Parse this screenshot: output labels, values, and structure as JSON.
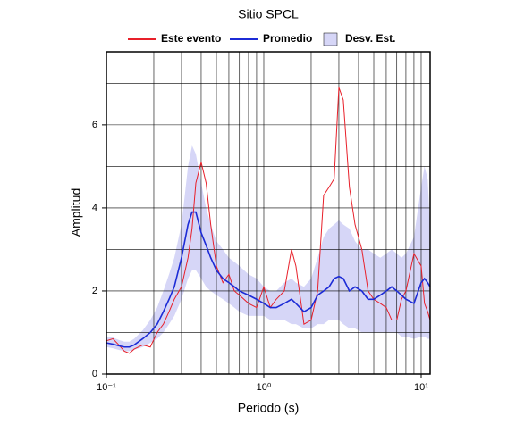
{
  "chart_data": {
    "type": "line",
    "title": "Sitio SPCL",
    "xlabel": "Periodo (s)",
    "ylabel": "Amplitud",
    "xscale": "log",
    "grid": true,
    "legend": "top",
    "xlim": [
      0.1,
      11.4
    ],
    "ylim": [
      0,
      7.76
    ],
    "xticks": [
      {
        "value": 0.1,
        "label": "10⁻¹"
      },
      {
        "value": 1,
        "label": "10⁰"
      },
      {
        "value": 10,
        "label": "10¹"
      }
    ],
    "xminor": [
      0.2,
      0.3,
      0.4,
      0.5,
      0.6,
      0.7,
      0.8,
      0.9,
      2,
      3,
      4,
      5,
      6,
      7,
      8,
      9
    ],
    "yticks": [
      0,
      2,
      4,
      6
    ],
    "yminor": [
      1,
      3,
      5,
      7
    ],
    "x": [
      0.1,
      0.11,
      0.12,
      0.13,
      0.14,
      0.15,
      0.17,
      0.19,
      0.21,
      0.23,
      0.25,
      0.27,
      0.3,
      0.33,
      0.35,
      0.37,
      0.4,
      0.43,
      0.46,
      0.5,
      0.55,
      0.6,
      0.65,
      0.7,
      0.8,
      0.9,
      1.0,
      1.1,
      1.2,
      1.35,
      1.5,
      1.6,
      1.8,
      2.0,
      2.2,
      2.4,
      2.6,
      2.8,
      3.0,
      3.2,
      3.5,
      3.8,
      4.2,
      4.6,
      5.0,
      5.5,
      6.0,
      6.5,
      7.0,
      7.5,
      8.0,
      9.0,
      10.0,
      10.5,
      11.0,
      11.4
    ],
    "band": {
      "name": "Desv. Est.",
      "color": "#d6d6f7",
      "lower": [
        0.65,
        0.62,
        0.58,
        0.55,
        0.55,
        0.58,
        0.65,
        0.75,
        0.85,
        1.0,
        1.2,
        1.4,
        1.8,
        2.3,
        2.5,
        2.5,
        2.3,
        2.1,
        2.0,
        1.9,
        1.8,
        1.7,
        1.6,
        1.5,
        1.4,
        1.4,
        1.4,
        1.3,
        1.3,
        1.3,
        1.2,
        1.2,
        1.1,
        1.1,
        1.2,
        1.2,
        1.3,
        1.3,
        1.3,
        1.2,
        1.1,
        1.1,
        1.0,
        1.0,
        1.0,
        1.0,
        1.0,
        1.0,
        1.0,
        0.9,
        0.9,
        0.85,
        0.9,
        0.9,
        0.85,
        0.85
      ],
      "upper": [
        0.9,
        0.88,
        0.82,
        0.78,
        0.78,
        0.85,
        1.05,
        1.3,
        1.6,
        2.0,
        2.4,
        2.8,
        3.6,
        5.0,
        5.5,
        5.3,
        4.6,
        4.0,
        3.6,
        3.2,
        3.0,
        2.8,
        2.7,
        2.6,
        2.4,
        2.3,
        2.1,
        2.0,
        2.0,
        2.2,
        2.3,
        2.2,
        2.1,
        2.3,
        2.8,
        3.3,
        3.5,
        3.6,
        3.7,
        3.6,
        3.5,
        3.2,
        3.0,
        3.0,
        2.9,
        2.8,
        2.9,
        3.0,
        2.9,
        2.8,
        2.9,
        3.3,
        4.5,
        5.0,
        4.7,
        3.5
      ]
    },
    "series": [
      {
        "name": "Este evento",
        "color": "#e8202a",
        "values": [
          0.8,
          0.85,
          0.7,
          0.55,
          0.5,
          0.6,
          0.7,
          0.65,
          1.0,
          1.2,
          1.5,
          1.8,
          2.1,
          2.8,
          3.5,
          4.6,
          5.1,
          4.6,
          3.6,
          2.6,
          2.2,
          2.4,
          2.0,
          1.9,
          1.7,
          1.6,
          2.1,
          1.6,
          1.8,
          2.0,
          3.0,
          2.6,
          1.2,
          1.3,
          2.0,
          4.3,
          4.5,
          4.7,
          6.9,
          6.6,
          4.5,
          3.6,
          3.0,
          2.0,
          1.8,
          1.7,
          1.6,
          1.3,
          1.3,
          1.8,
          2.0,
          2.9,
          2.6,
          1.7,
          1.5,
          1.3
        ]
      },
      {
        "name": "Promedio",
        "color": "#1c2bd6",
        "values": [
          0.75,
          0.72,
          0.68,
          0.65,
          0.65,
          0.7,
          0.85,
          1.0,
          1.2,
          1.5,
          1.8,
          2.1,
          2.8,
          3.6,
          3.9,
          3.9,
          3.4,
          3.1,
          2.8,
          2.5,
          2.3,
          2.2,
          2.1,
          2.0,
          1.9,
          1.8,
          1.7,
          1.6,
          1.6,
          1.7,
          1.8,
          1.7,
          1.5,
          1.6,
          1.9,
          2.0,
          2.1,
          2.3,
          2.35,
          2.3,
          2.0,
          2.1,
          2.0,
          1.8,
          1.8,
          1.9,
          2.0,
          2.1,
          2.0,
          1.9,
          1.8,
          1.7,
          2.2,
          2.3,
          2.2,
          2.1
        ]
      }
    ]
  }
}
